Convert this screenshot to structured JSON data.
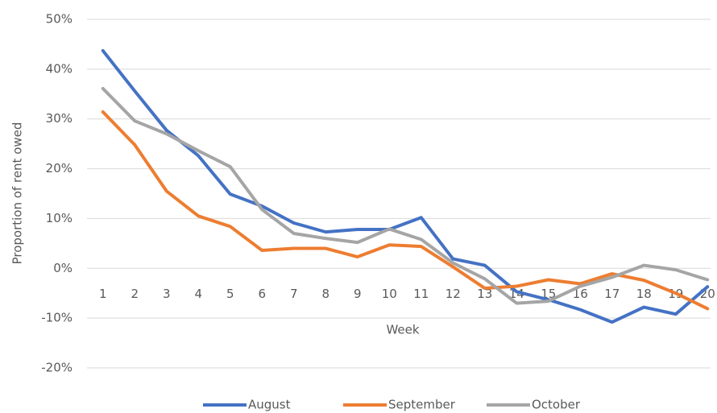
{
  "chart_data": {
    "type": "line",
    "x_label": "Week",
    "y_label": "Proportion of rent owed",
    "categories": [
      "1",
      "2",
      "3",
      "4",
      "5",
      "6",
      "7",
      "8",
      "9",
      "10",
      "11",
      "12",
      "13",
      "14",
      "15",
      "16",
      "17",
      "18",
      "19",
      "20"
    ],
    "series": [
      {
        "name": "August",
        "color": "#4472c4",
        "values": [
          43.7,
          35.6,
          27.7,
          22.6,
          14.9,
          12.5,
          9.1,
          7.3,
          7.8,
          7.8,
          10.2,
          1.9,
          0.6,
          -4.7,
          -6.3,
          -8.3,
          -10.8,
          -7.8,
          -9.2,
          -3.7
        ]
      },
      {
        "name": "September",
        "color": "#ed7d31",
        "values": [
          31.4,
          24.8,
          15.5,
          10.5,
          8.4,
          3.6,
          4.0,
          4.0,
          2.3,
          4.7,
          4.4,
          0.3,
          -4.0,
          -3.6,
          -2.3,
          -3.1,
          -1.1,
          -2.4,
          -5.0,
          -8.1
        ]
      },
      {
        "name": "October",
        "color": "#a5a5a5",
        "values": [
          36.1,
          29.6,
          27.0,
          23.6,
          20.4,
          11.8,
          7.0,
          6.0,
          5.2,
          7.9,
          5.8,
          1.1,
          -2.1,
          -7.0,
          -6.6,
          -3.6,
          -1.8,
          0.6,
          -0.3,
          -2.3
        ]
      }
    ],
    "ylim": [
      -20,
      50
    ],
    "yticks": [
      {
        "value": -20,
        "label": "-20%"
      },
      {
        "value": -10,
        "label": "-10%"
      },
      {
        "value": 0,
        "label": "0%"
      },
      {
        "value": 10,
        "label": "10%"
      },
      {
        "value": 20,
        "label": "20%"
      },
      {
        "value": 30,
        "label": "30%"
      },
      {
        "value": 40,
        "label": "40%"
      },
      {
        "value": 50,
        "label": "50%"
      }
    ],
    "grid": true,
    "legend": "bottom"
  }
}
